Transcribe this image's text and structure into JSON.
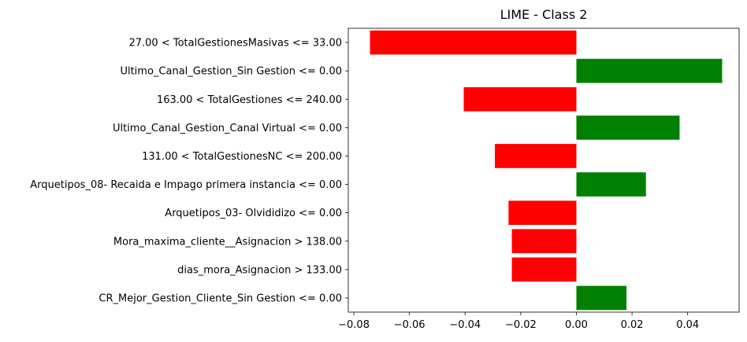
{
  "chart_data": {
    "type": "bar",
    "orientation": "horizontal",
    "title": "LIME - Class 2",
    "xlabel": "",
    "ylabel": "",
    "xlim": [
      -0.082,
      0.0585
    ],
    "xticks": [
      -0.08,
      -0.06,
      -0.04,
      -0.02,
      0.0,
      0.02,
      0.04
    ],
    "xtick_labels": [
      "−0.08",
      "−0.06",
      "−0.04",
      "−0.02",
      "0.00",
      "0.02",
      "0.04"
    ],
    "grid": false,
    "positive_color": "#008000",
    "negative_color": "#ff0000",
    "categories": [
      "27.00 < TotalGestionesMasivas <= 33.00",
      "Ultimo_Canal_Gestion_Sin Gestion <= 0.00",
      "163.00 < TotalGestiones <= 240.00",
      "Ultimo_Canal_Gestion_Canal Virtual <= 0.00",
      "131.00 < TotalGestionesNC <= 200.00",
      "Arquetipos_08- Recaida e Impago primera instancia <= 0.00",
      "Arquetipos_03- Olvididizo <= 0.00",
      "Mora_maxima_cliente__Asignacion > 138.00",
      "dias_mora_Asignacion > 133.00",
      "CR_Mejor_Gestion_Cliente_Sin Gestion <= 0.00"
    ],
    "values": [
      -0.0742,
      0.0524,
      -0.0405,
      0.0371,
      -0.0293,
      0.025,
      -0.0244,
      -0.0232,
      -0.0232,
      0.018
    ]
  }
}
